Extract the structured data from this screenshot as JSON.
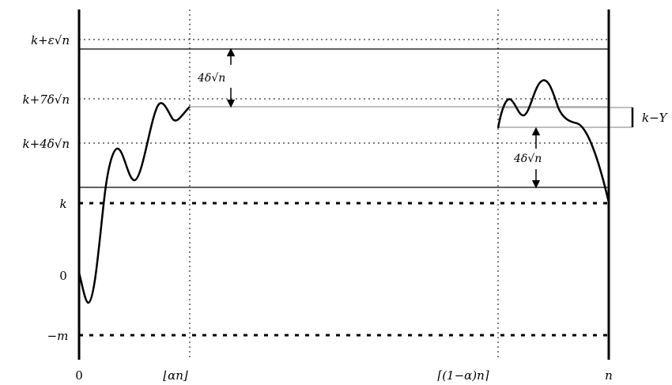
{
  "y_labels": {
    "k_eps": "k+ε√n",
    "k7": "k+7δ√n",
    "k4": "k+4δ√n",
    "k": "k",
    "zero": "0",
    "m": "−m"
  },
  "x_labels": {
    "zero": "0",
    "alpha_n": "⌊αn⌋",
    "one_minus_alpha_n": "⌈(1−α)n⌉",
    "n": "n"
  },
  "annotations": {
    "gap_left": "4δ√n",
    "gap_right": "4δ√n",
    "k_minus_y": "k−Y"
  }
}
